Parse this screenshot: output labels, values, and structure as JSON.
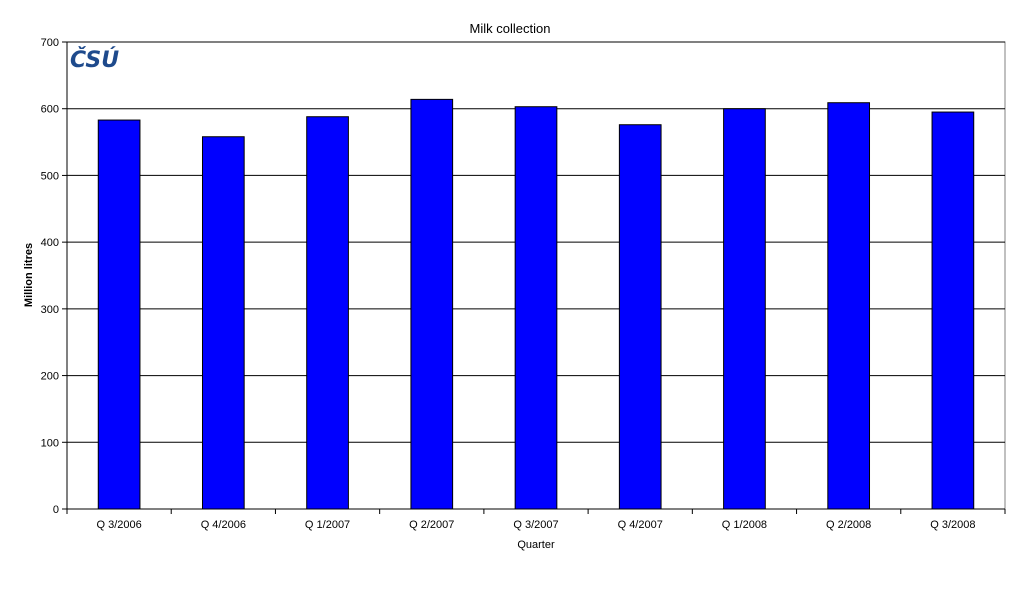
{
  "chart_data": {
    "type": "bar",
    "title": "Milk collection",
    "xlabel": "Quarter",
    "ylabel": "Million litres",
    "categories": [
      "Q 3/2006",
      "Q 4/2006",
      "Q 1/2007",
      "Q 2/2007",
      "Q 3/2007",
      "Q 4/2007",
      "Q 1/2008",
      "Q 2/2008",
      "Q 3/2008"
    ],
    "values": [
      583,
      558,
      588,
      614,
      603,
      576,
      600,
      609,
      595
    ],
    "ylim": [
      0,
      700
    ],
    "yticks": [
      0,
      100,
      200,
      300,
      400,
      500,
      600,
      700
    ],
    "grid": true,
    "legend": "none",
    "bar_color": "#0000ff",
    "logo": "ČSÚ"
  }
}
